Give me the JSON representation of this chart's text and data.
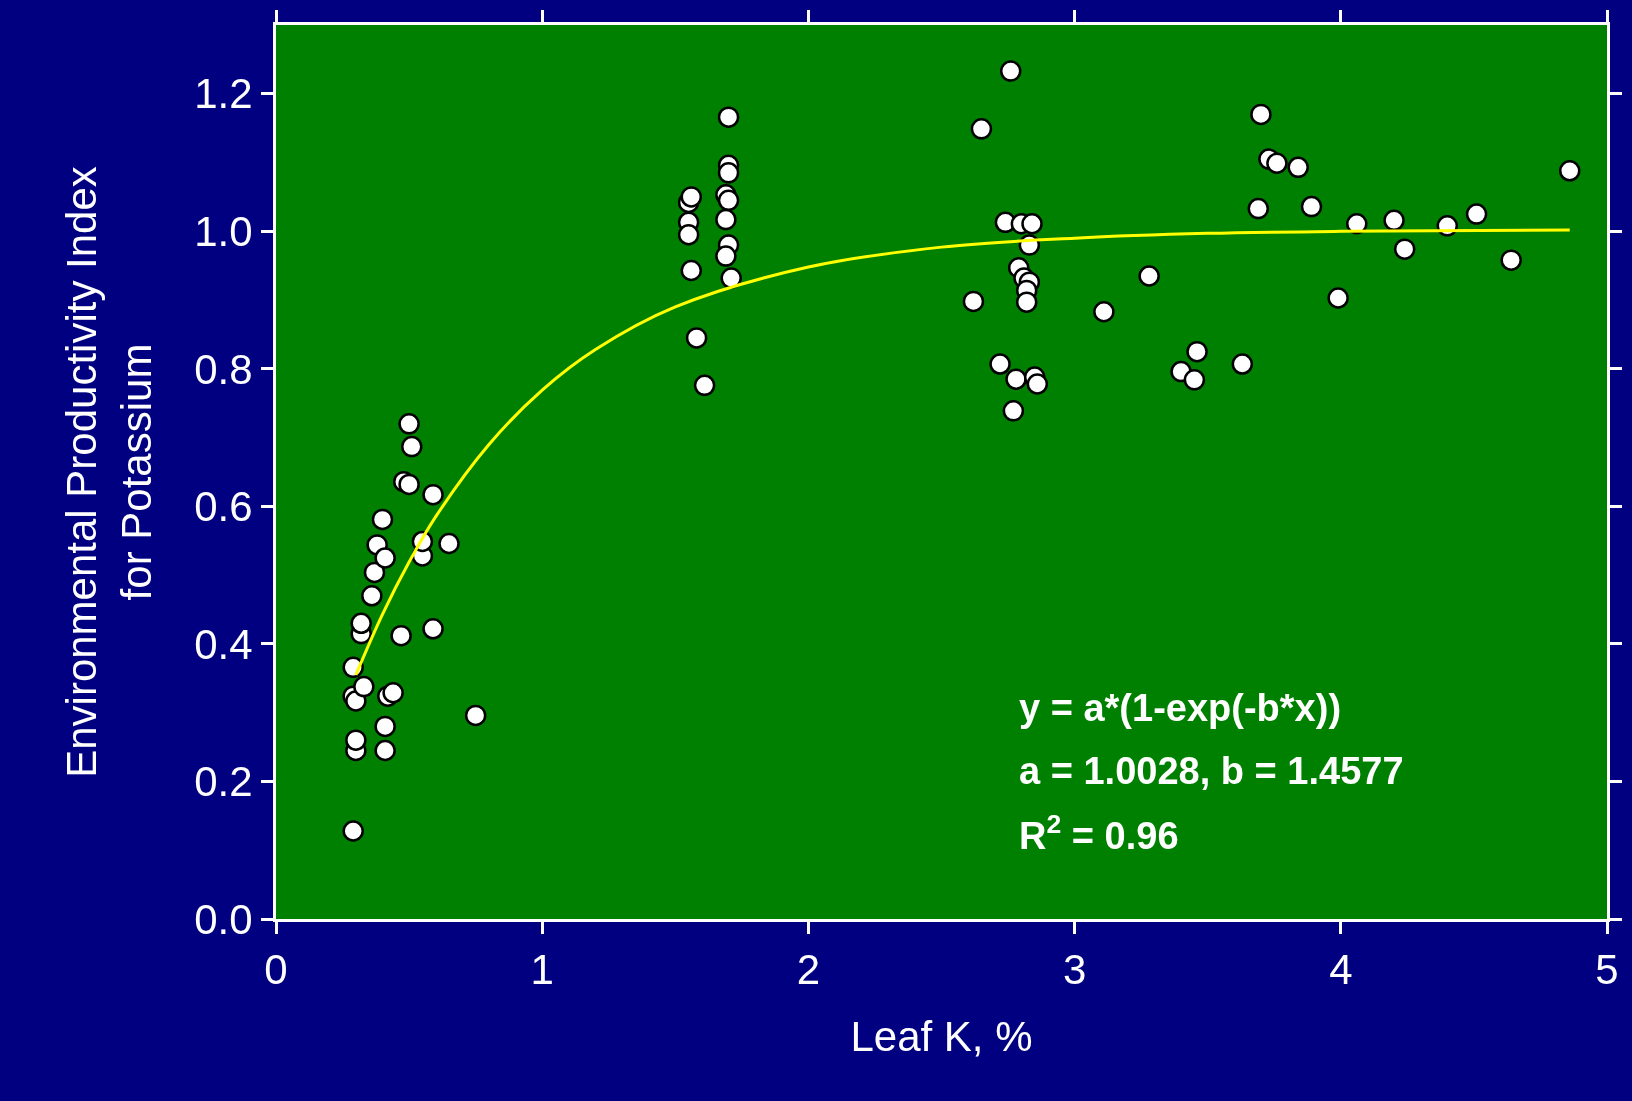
{
  "chart_data": {
    "type": "scatter",
    "xlabel": "Leaf K, %",
    "ylabel": "Environmental Productivity Index\nfor Potassium",
    "xlim": [
      0,
      5
    ],
    "xticks": [
      0,
      1,
      2,
      3,
      4,
      5
    ],
    "ylim": [
      0,
      1.3
    ],
    "yticks": [
      {
        "value": 0,
        "label": "0.0"
      },
      0.2,
      0.4,
      0.6,
      0.8,
      {
        "value": 1,
        "label": "1.0"
      },
      1.2
    ],
    "grid": false,
    "legend": false,
    "marker": "circle",
    "series": [
      {
        "color": "#ffffff",
        "x": [
          0.29,
          0.3,
          0.3,
          0.29,
          0.3,
          0.29,
          0.33,
          0.32,
          0.32,
          0.36,
          0.37,
          0.38,
          0.41,
          0.4,
          0.5,
          0.51,
          0.48,
          0.5,
          0.59,
          0.55,
          0.55,
          0.65,
          0.47,
          0.59,
          0.42,
          0.44,
          0.41,
          0.41,
          0.75,
          1.55,
          1.56,
          1.55,
          1.55,
          1.56,
          1.58,
          1.61,
          1.7,
          1.7,
          1.7,
          1.69,
          1.7,
          1.69,
          1.7,
          1.69,
          1.71,
          2.65,
          2.76,
          2.62,
          2.74,
          2.8,
          2.84,
          2.83,
          2.79,
          2.81,
          2.83,
          2.82,
          2.82,
          2.72,
          2.78,
          2.85,
          2.86,
          2.77,
          3.11,
          3.28,
          3.4,
          3.46,
          3.45,
          3.63,
          3.7,
          3.73,
          3.76,
          3.84,
          3.69,
          3.89,
          3.99,
          4.06,
          4.2,
          4.24,
          4.4,
          4.51,
          4.64,
          4.86
        ],
        "values": [
          0.128,
          0.245,
          0.26,
          0.324,
          0.317,
          0.366,
          0.338,
          0.415,
          0.43,
          0.47,
          0.504,
          0.544,
          0.525,
          0.581,
          0.72,
          0.687,
          0.636,
          0.632,
          0.617,
          0.528,
          0.549,
          0.546,
          0.412,
          0.422,
          0.324,
          0.329,
          0.28,
          0.245,
          0.296,
          1.042,
          1.05,
          1.013,
          0.995,
          0.943,
          0.845,
          0.776,
          1.166,
          1.096,
          1.085,
          1.053,
          1.045,
          1.017,
          0.98,
          0.964,
          0.932,
          1.149,
          1.233,
          0.898,
          1.013,
          1.011,
          1.011,
          0.98,
          0.947,
          0.932,
          0.926,
          0.914,
          0.897,
          0.807,
          0.785,
          0.788,
          0.778,
          0.739,
          0.883,
          0.935,
          0.796,
          0.825,
          0.784,
          0.807,
          1.17,
          1.105,
          1.099,
          1.093,
          1.033,
          1.036,
          0.903,
          1.011,
          1.016,
          0.974,
          1.008,
          1.025,
          0.958,
          1.088
        ]
      },
      {
        "type": "line",
        "color": "#ffff00",
        "marker": "none",
        "line_style": "solid",
        "x": [
          0.3,
          0.4,
          0.5,
          0.6,
          0.8,
          1.0,
          1.2,
          1.5,
          2.0,
          2.5,
          3.0,
          3.5,
          4.0,
          4.86
        ],
        "values": [
          0.355,
          0.443,
          0.519,
          0.585,
          0.69,
          0.769,
          0.828,
          0.89,
          0.948,
          0.977,
          0.99,
          0.997,
          1.0,
          1.002
        ]
      }
    ],
    "annotations": [
      "y = a*(1-exp(-b*x))",
      "a = 1.0028, b = 1.4577",
      "R$^{2}$ = 0.96"
    ]
  }
}
